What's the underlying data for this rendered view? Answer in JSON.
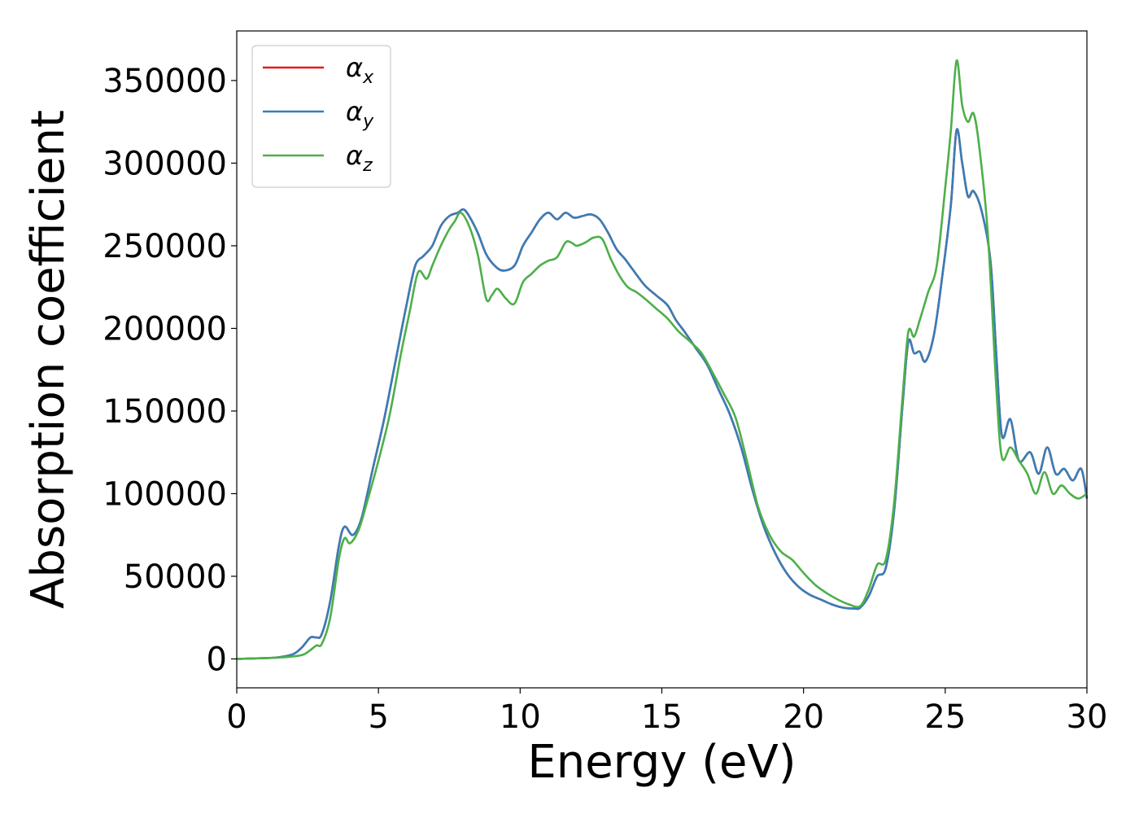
{
  "chart_data": {
    "type": "line",
    "title": "",
    "xlabel": "Energy (eV)",
    "ylabel": "Absorption coefficient",
    "xlim": [
      0,
      30
    ],
    "ylim": [
      -17500,
      380000
    ],
    "xticks": [
      0,
      5,
      10,
      15,
      20,
      25,
      30
    ],
    "yticks": [
      0,
      50000,
      100000,
      150000,
      200000,
      250000,
      300000,
      350000
    ],
    "xtick_labels": [
      "0",
      "5",
      "10",
      "15",
      "20",
      "25",
      "30"
    ],
    "ytick_labels": [
      "0",
      "50000",
      "100000",
      "150000",
      "200000",
      "250000",
      "300000",
      "350000"
    ],
    "grid": false,
    "legend_position": "top-left",
    "series": [
      {
        "name": "α_x",
        "symbol": "α",
        "subscript": "x",
        "color": "#e41a1c",
        "x": [
          0,
          1,
          1.5,
          2,
          2.3,
          2.6,
          2.8,
          3.0,
          3.3,
          3.6,
          3.8,
          4.1,
          4.4,
          4.8,
          5.2,
          5.6,
          6.0,
          6.3,
          6.6,
          6.9,
          7.2,
          7.5,
          7.8,
          8.0,
          8.2,
          8.5,
          8.8,
          9.1,
          9.4,
          9.8,
          10.1,
          10.4,
          10.7,
          11.0,
          11.3,
          11.6,
          11.9,
          12.2,
          12.5,
          12.8,
          13.1,
          13.4,
          13.7,
          14.0,
          14.4,
          14.8,
          15.2,
          15.5,
          15.8,
          16.2,
          16.6,
          17.0,
          17.4,
          17.8,
          18.2,
          18.6,
          19.0,
          19.4,
          19.8,
          20.2,
          20.6,
          21.0,
          21.4,
          21.8,
          22.0,
          22.3,
          22.6,
          22.9,
          23.2,
          23.5,
          23.7,
          23.9,
          24.1,
          24.3,
          24.6,
          24.9,
          25.2,
          25.4,
          25.6,
          25.8,
          26.0,
          26.3,
          26.6,
          26.8,
          27.0,
          27.3,
          27.6,
          28.0,
          28.3,
          28.6,
          28.9,
          29.2,
          29.5,
          29.8,
          30.0
        ],
        "values": [
          0,
          500,
          1000,
          3000,
          7000,
          13000,
          13000,
          15000,
          35000,
          68000,
          80000,
          75000,
          85000,
          115000,
          145000,
          180000,
          215000,
          238000,
          244000,
          250000,
          262000,
          268000,
          270000,
          272000,
          268000,
          258000,
          245000,
          238000,
          235000,
          238000,
          250000,
          258000,
          266000,
          270000,
          266000,
          270000,
          267000,
          268000,
          269000,
          266000,
          258000,
          248000,
          242000,
          235000,
          226000,
          220000,
          214000,
          205000,
          198000,
          188000,
          178000,
          163000,
          148000,
          128000,
          102000,
          80000,
          64000,
          52000,
          44000,
          39000,
          36000,
          33000,
          31000,
          30500,
          31000,
          38000,
          50000,
          55000,
          90000,
          155000,
          192000,
          185000,
          186000,
          180000,
          196000,
          232000,
          275000,
          320000,
          300000,
          280000,
          283000,
          270000,
          240000,
          185000,
          135000,
          145000,
          120000,
          125000,
          112000,
          128000,
          112000,
          115000,
          108000,
          115000,
          97000
        ]
      },
      {
        "name": "α_y",
        "symbol": "α",
        "subscript": "y",
        "color": "#377eb8",
        "x": [
          0,
          1,
          1.5,
          2,
          2.3,
          2.6,
          2.8,
          3.0,
          3.3,
          3.6,
          3.8,
          4.1,
          4.4,
          4.8,
          5.2,
          5.6,
          6.0,
          6.3,
          6.6,
          6.9,
          7.2,
          7.5,
          7.8,
          8.0,
          8.2,
          8.5,
          8.8,
          9.1,
          9.4,
          9.8,
          10.1,
          10.4,
          10.7,
          11.0,
          11.3,
          11.6,
          11.9,
          12.2,
          12.5,
          12.8,
          13.1,
          13.4,
          13.7,
          14.0,
          14.4,
          14.8,
          15.2,
          15.5,
          15.8,
          16.2,
          16.6,
          17.0,
          17.4,
          17.8,
          18.2,
          18.6,
          19.0,
          19.4,
          19.8,
          20.2,
          20.6,
          21.0,
          21.4,
          21.8,
          22.0,
          22.3,
          22.6,
          22.9,
          23.2,
          23.5,
          23.7,
          23.9,
          24.1,
          24.3,
          24.6,
          24.9,
          25.2,
          25.4,
          25.6,
          25.8,
          26.0,
          26.3,
          26.6,
          26.8,
          27.0,
          27.3,
          27.6,
          28.0,
          28.3,
          28.6,
          28.9,
          29.2,
          29.5,
          29.8,
          30.0
        ],
        "values": [
          0,
          500,
          1000,
          3000,
          7000,
          13000,
          13000,
          15000,
          35000,
          68000,
          80000,
          75000,
          85000,
          115000,
          145000,
          180000,
          215000,
          238000,
          244000,
          250000,
          262000,
          268000,
          270000,
          272000,
          268000,
          258000,
          245000,
          238000,
          235000,
          238000,
          250000,
          258000,
          266000,
          270000,
          266000,
          270000,
          267000,
          268000,
          269000,
          266000,
          258000,
          248000,
          242000,
          235000,
          226000,
          220000,
          214000,
          205000,
          198000,
          188000,
          178000,
          163000,
          148000,
          128000,
          102000,
          80000,
          64000,
          52000,
          44000,
          39000,
          36000,
          33000,
          31000,
          30500,
          31000,
          38000,
          50000,
          55000,
          90000,
          155000,
          192000,
          185000,
          186000,
          180000,
          196000,
          232000,
          275000,
          320000,
          300000,
          280000,
          283000,
          270000,
          240000,
          185000,
          135000,
          145000,
          120000,
          125000,
          112000,
          128000,
          112000,
          115000,
          108000,
          115000,
          97000
        ]
      },
      {
        "name": "α_z",
        "symbol": "α",
        "subscript": "z",
        "color": "#4daf4a",
        "x": [
          0,
          1,
          1.5,
          2,
          2.4,
          2.8,
          3.0,
          3.3,
          3.6,
          3.8,
          4.0,
          4.3,
          4.6,
          5.0,
          5.4,
          5.8,
          6.1,
          6.4,
          6.7,
          6.9,
          7.2,
          7.5,
          7.7,
          7.9,
          8.2,
          8.5,
          8.8,
          9.0,
          9.2,
          9.5,
          9.8,
          10.1,
          10.4,
          10.7,
          11.0,
          11.3,
          11.6,
          11.8,
          12.0,
          12.3,
          12.6,
          12.9,
          13.2,
          13.5,
          13.8,
          14.1,
          14.4,
          14.8,
          15.2,
          15.6,
          16.0,
          16.4,
          16.8,
          17.2,
          17.6,
          18.0,
          18.4,
          18.8,
          19.2,
          19.6,
          20.0,
          20.4,
          20.8,
          21.2,
          21.6,
          22.0,
          22.3,
          22.6,
          22.9,
          23.2,
          23.5,
          23.7,
          23.9,
          24.1,
          24.4,
          24.7,
          25.0,
          25.2,
          25.4,
          25.6,
          25.8,
          26.0,
          26.2,
          26.5,
          26.8,
          27.0,
          27.3,
          27.6,
          27.9,
          28.2,
          28.5,
          28.8,
          29.1,
          29.4,
          29.7,
          30.0
        ],
        "values": [
          0,
          500,
          800,
          1500,
          3000,
          8000,
          9000,
          25000,
          60000,
          73000,
          70000,
          78000,
          95000,
          120000,
          148000,
          185000,
          210000,
          234000,
          230000,
          238000,
          250000,
          260000,
          265000,
          270000,
          262000,
          245000,
          218000,
          220000,
          224000,
          218000,
          215000,
          228000,
          233000,
          238000,
          241000,
          243000,
          252000,
          252000,
          250000,
          252000,
          255000,
          254000,
          242000,
          232000,
          225000,
          222000,
          218000,
          212000,
          206000,
          198000,
          192000,
          185000,
          173000,
          160000,
          146000,
          120000,
          92000,
          75000,
          65000,
          60000,
          52000,
          45000,
          40000,
          36000,
          33000,
          32000,
          42000,
          57000,
          60000,
          95000,
          160000,
          198000,
          195000,
          205000,
          222000,
          238000,
          285000,
          320000,
          362000,
          335000,
          325000,
          330000,
          310000,
          258000,
          165000,
          122000,
          128000,
          120000,
          112000,
          100000,
          113000,
          100000,
          105000,
          100000,
          97000,
          100000
        ]
      }
    ]
  }
}
